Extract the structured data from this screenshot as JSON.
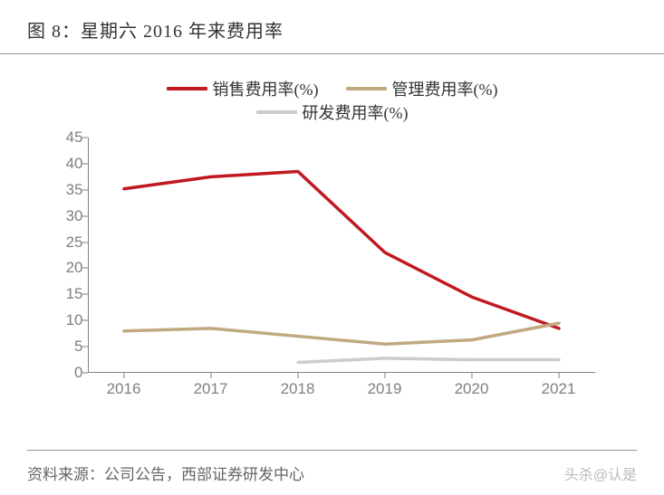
{
  "title": "图 8：星期六 2016 年来费用率",
  "source_label": "资料来源：公司公告，西部证券研发中心",
  "watermark": "头杀@认是",
  "chart": {
    "type": "line",
    "background_color": "#ffffff",
    "axis_color": "#808080",
    "tick_font_color": "#808080",
    "tick_font_size": 17,
    "title_font_size": 20,
    "title_color": "#333333",
    "legend_font_size": 18,
    "ylim": [
      0,
      45
    ],
    "ytick_step": 5,
    "yticks": [
      0,
      5,
      10,
      15,
      20,
      25,
      30,
      35,
      40,
      45
    ],
    "categories": [
      "2016",
      "2017",
      "2018",
      "2019",
      "2020",
      "2021"
    ],
    "line_width": 3.5,
    "series": [
      {
        "name": "销售费用率(%)",
        "color": "#c11920",
        "values": [
          35.2,
          37.5,
          38.5,
          23.0,
          14.5,
          8.5
        ]
      },
      {
        "name": "管理费用率(%)",
        "color": "#c0a97f",
        "values": [
          8.0,
          8.5,
          7.0,
          5.5,
          6.3,
          9.5
        ]
      },
      {
        "name": "研发费用率(%)",
        "color": "#cccccc",
        "values": [
          null,
          null,
          2.0,
          2.8,
          2.5,
          2.5
        ]
      }
    ]
  }
}
